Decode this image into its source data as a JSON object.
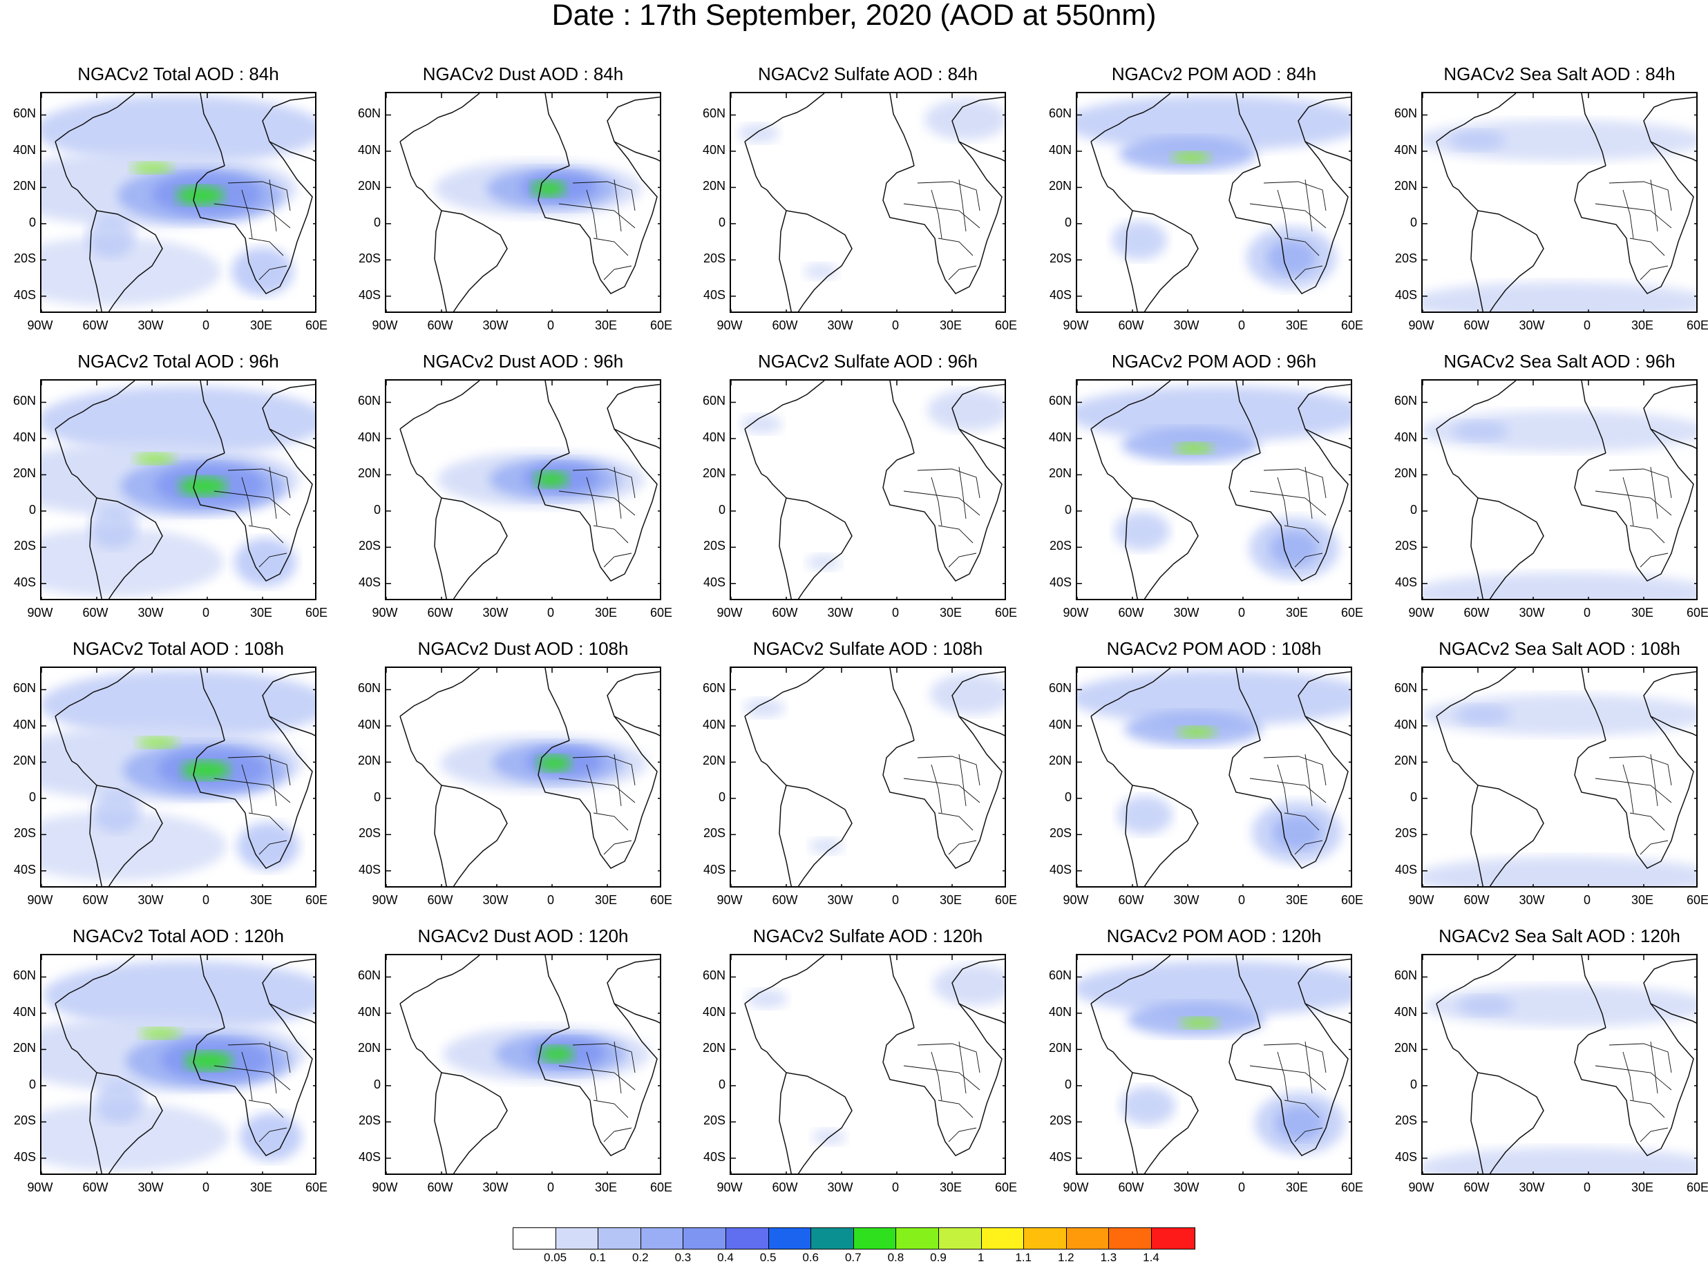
{
  "title": "Date : 17th September, 2020 (AOD at 550nm)",
  "lat_labels": [
    "60N",
    "40N",
    "20N",
    "0",
    "20S",
    "40S"
  ],
  "lon_labels": [
    "90W",
    "60W",
    "30W",
    "0",
    "30E",
    "60E"
  ],
  "panel_titles": [
    [
      "NGACv2 Total AOD : 84h",
      "NGACv2 Dust AOD : 84h",
      "NGACv2 Sulfate AOD : 84h",
      "NGACv2 POM AOD : 84h",
      "NGACv2 Sea Salt AOD : 84h"
    ],
    [
      "NGACv2 Total AOD : 96h",
      "NGACv2 Dust AOD : 96h",
      "NGACv2 Sulfate AOD : 96h",
      "NGACv2 POM AOD : 96h",
      "NGACv2 Sea Salt AOD : 96h"
    ],
    [
      "NGACv2 Total AOD : 108h",
      "NGACv2 Dust AOD : 108h",
      "NGACv2 Sulfate AOD : 108h",
      "NGACv2 POM AOD : 108h",
      "NGACv2 Sea Salt AOD : 108h"
    ],
    [
      "NGACv2 Total AOD : 120h",
      "NGACv2 Dust AOD : 120h",
      "NGACv2 Sulfate AOD : 120h",
      "NGACv2 POM AOD : 120h",
      "NGACv2 Sea Salt  AOD : 120h"
    ]
  ],
  "colorbar": {
    "labels": [
      "0.05",
      "0.1",
      "0.2",
      "0.3",
      "0.4",
      "0.5",
      "0.6",
      "0.7",
      "0.8",
      "0.9",
      "1",
      "1.1",
      "1.2",
      "1.3",
      "1.4"
    ],
    "colors": [
      "#ffffff",
      "#d3dcf8",
      "#b5c5f6",
      "#99aef4",
      "#7f95f2",
      "#5f6ff0",
      "#1a64f0",
      "#0a9090",
      "#2ee01e",
      "#86f01a",
      "#c5f23c",
      "#fff21a",
      "#ffbe0a",
      "#ff9a0a",
      "#ff6a0a",
      "#ff1a1a"
    ]
  }
}
